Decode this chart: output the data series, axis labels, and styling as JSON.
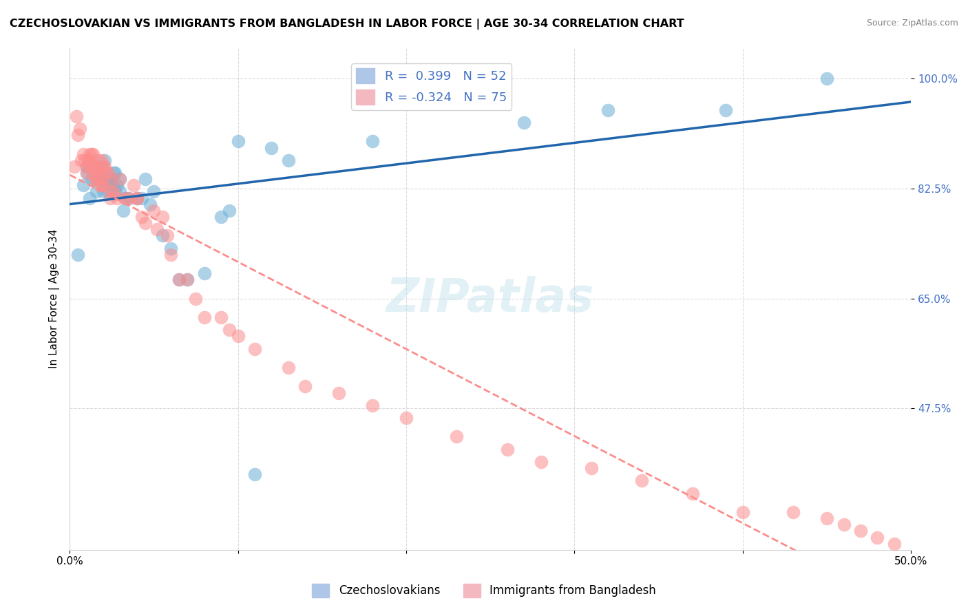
{
  "title": "CZECHOSLOVAKIAN VS IMMIGRANTS FROM BANGLADESH IN LABOR FORCE | AGE 30-34 CORRELATION CHART",
  "source": "Source: ZipAtlas.com",
  "ylabel": "In Labor Force | Age 30-34",
  "x_min": 0.0,
  "x_max": 0.5,
  "y_min": 0.25,
  "y_max": 1.05,
  "x_ticks": [
    0.0,
    0.1,
    0.2,
    0.3,
    0.4,
    0.5
  ],
  "x_tick_labels": [
    "0.0%",
    "",
    "",
    "",
    "",
    "50.0%"
  ],
  "y_ticks": [
    0.475,
    0.65,
    0.825,
    1.0
  ],
  "y_tick_labels": [
    "47.5%",
    "65.0%",
    "82.5%",
    "100.0%"
  ],
  "legend_blue_r": "0.399",
  "legend_blue_n": "52",
  "legend_pink_r": "-0.324",
  "legend_pink_n": "75",
  "blue_color": "#6baed6",
  "pink_color": "#fc8d8d",
  "blue_line_color": "#2166ac",
  "pink_line_color": "#fc8d8d",
  "blue_scatter_x": [
    0.005,
    0.008,
    0.01,
    0.01,
    0.012,
    0.013,
    0.015,
    0.015,
    0.016,
    0.017,
    0.018,
    0.018,
    0.019,
    0.02,
    0.02,
    0.021,
    0.022,
    0.022,
    0.023,
    0.024,
    0.025,
    0.025,
    0.026,
    0.027,
    0.027,
    0.028,
    0.03,
    0.03,
    0.032,
    0.033,
    0.035,
    0.04,
    0.043,
    0.045,
    0.048,
    0.05,
    0.055,
    0.06,
    0.065,
    0.07,
    0.08,
    0.09,
    0.095,
    0.1,
    0.11,
    0.12,
    0.13,
    0.18,
    0.27,
    0.32,
    0.39,
    0.45
  ],
  "blue_scatter_y": [
    0.72,
    0.83,
    0.85,
    0.86,
    0.81,
    0.84,
    0.84,
    0.86,
    0.82,
    0.85,
    0.84,
    0.85,
    0.86,
    0.84,
    0.82,
    0.87,
    0.84,
    0.84,
    0.82,
    0.84,
    0.83,
    0.84,
    0.85,
    0.82,
    0.85,
    0.83,
    0.82,
    0.84,
    0.79,
    0.81,
    0.81,
    0.81,
    0.81,
    0.84,
    0.8,
    0.82,
    0.75,
    0.73,
    0.68,
    0.68,
    0.69,
    0.78,
    0.79,
    0.9,
    0.37,
    0.89,
    0.87,
    0.9,
    0.93,
    0.95,
    0.95,
    1.0
  ],
  "pink_scatter_x": [
    0.003,
    0.004,
    0.005,
    0.006,
    0.007,
    0.008,
    0.009,
    0.01,
    0.01,
    0.011,
    0.012,
    0.012,
    0.013,
    0.013,
    0.014,
    0.014,
    0.015,
    0.015,
    0.016,
    0.016,
    0.017,
    0.017,
    0.018,
    0.018,
    0.019,
    0.019,
    0.02,
    0.02,
    0.021,
    0.022,
    0.023,
    0.024,
    0.025,
    0.025,
    0.026,
    0.028,
    0.03,
    0.033,
    0.035,
    0.038,
    0.04,
    0.04,
    0.043,
    0.045,
    0.05,
    0.052,
    0.055,
    0.058,
    0.06,
    0.065,
    0.07,
    0.075,
    0.08,
    0.09,
    0.095,
    0.1,
    0.11,
    0.13,
    0.14,
    0.16,
    0.18,
    0.2,
    0.23,
    0.26,
    0.28,
    0.31,
    0.34,
    0.37,
    0.4,
    0.43,
    0.45,
    0.46,
    0.47,
    0.48,
    0.49
  ],
  "pink_scatter_y": [
    0.86,
    0.94,
    0.91,
    0.92,
    0.87,
    0.88,
    0.87,
    0.86,
    0.85,
    0.87,
    0.87,
    0.88,
    0.86,
    0.88,
    0.85,
    0.88,
    0.84,
    0.86,
    0.84,
    0.86,
    0.84,
    0.87,
    0.83,
    0.85,
    0.83,
    0.87,
    0.83,
    0.86,
    0.86,
    0.85,
    0.85,
    0.81,
    0.82,
    0.84,
    0.82,
    0.81,
    0.84,
    0.81,
    0.81,
    0.83,
    0.81,
    0.81,
    0.78,
    0.77,
    0.79,
    0.76,
    0.78,
    0.75,
    0.72,
    0.68,
    0.68,
    0.65,
    0.62,
    0.62,
    0.6,
    0.59,
    0.57,
    0.54,
    0.51,
    0.5,
    0.48,
    0.46,
    0.43,
    0.41,
    0.39,
    0.38,
    0.36,
    0.34,
    0.31,
    0.31,
    0.3,
    0.29,
    0.28,
    0.27,
    0.26
  ]
}
